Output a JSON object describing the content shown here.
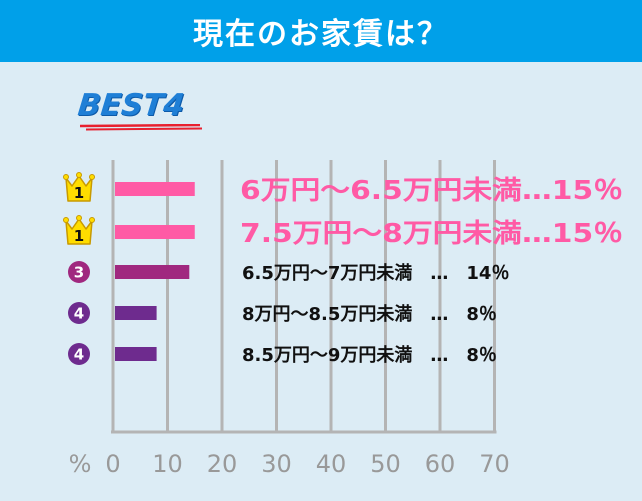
{
  "header": {
    "title": "現在のお家賃は？"
  },
  "badge": {
    "text": "BEST4"
  },
  "colors": {
    "header_bg": "#00a0e9",
    "bar_pink": "#ff5aa5",
    "bar_magenta": "#a0287f",
    "bar_purple": "#6e2b8e",
    "crown": "#ffdd00",
    "grid": "#b4b4b4",
    "tick_text": "#999999"
  },
  "chart_data": {
    "type": "bar",
    "orientation": "horizontal",
    "xlim": [
      0,
      70
    ],
    "x_ticks": [
      "0",
      "10",
      "20",
      "30",
      "40",
      "50",
      "60",
      "70"
    ],
    "axis_unit_label": "%",
    "grid": true,
    "items": [
      {
        "rank": "1",
        "label": "6万円～6.5万円未満…15％",
        "value": 15,
        "color": "#ff5aa5",
        "label_color": "#ff5aa5",
        "highlight": true
      },
      {
        "rank": "1",
        "label": "7.5万円～8万円未満…15％",
        "value": 15,
        "color": "#ff5aa5",
        "label_color": "#ff5aa5",
        "highlight": true
      },
      {
        "rank": "3",
        "label": "6.5万円～7万円未満　…　14％",
        "value": 14,
        "color": "#a0287f",
        "label_color": "#111111",
        "highlight": false
      },
      {
        "rank": "4",
        "label": "8万円～8.5万円未満　…　8％",
        "value": 8,
        "color": "#6e2b8e",
        "label_color": "#111111",
        "highlight": false
      },
      {
        "rank": "4",
        "label": "8.5万円～9万円未満　…　8％",
        "value": 8,
        "color": "#6e2b8e",
        "label_color": "#111111",
        "highlight": false
      }
    ]
  }
}
